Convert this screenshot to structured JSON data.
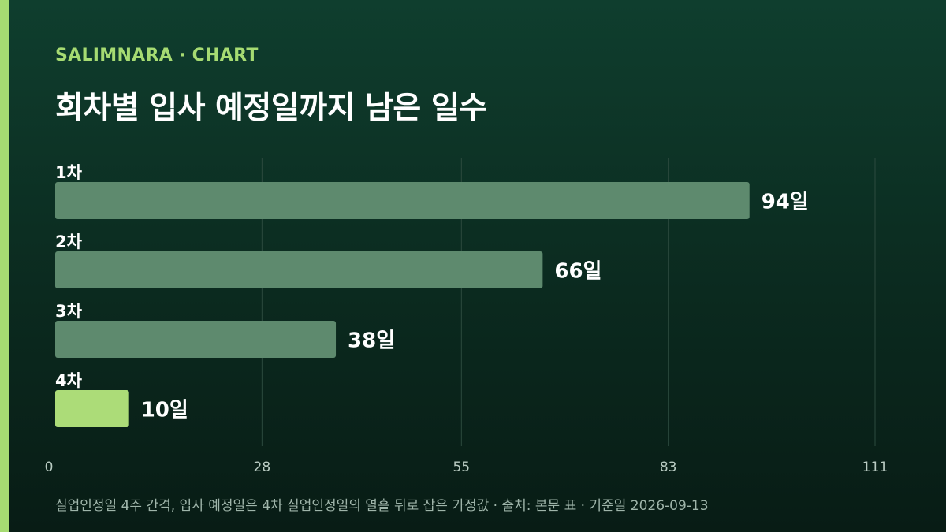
{
  "header": {
    "kicker": "SALIMNARA · CHART",
    "title": "회차별 입사 예정일까지 남은 일수"
  },
  "chart_data": {
    "type": "bar",
    "orientation": "horizontal",
    "categories": [
      "1차",
      "2차",
      "3차",
      "4차"
    ],
    "values": [
      94,
      66,
      38,
      10
    ],
    "value_labels": [
      "94일",
      "66일",
      "38일",
      "10일"
    ],
    "unit": "일",
    "xlim": [
      0,
      111
    ],
    "x_ticks": [
      0,
      28,
      55,
      83,
      111
    ],
    "grid": true,
    "highlight_index": 3,
    "colors": {
      "bar": "#5e8a6e",
      "highlight": "#acdc78",
      "grid": "#2c4a3e",
      "tick_text": "#b9cbc2"
    }
  },
  "footer": {
    "note": "실업인정일 4주 간격, 입사 예정일은 4차 실업인정일의 열흘 뒤로 잡은 가정값 · 출처: 본문 표 · 기준일 2026-09-13"
  },
  "colors": {
    "accent": "#a6db72",
    "background_top": "#0f3e2e",
    "background_bottom": "#081c15"
  }
}
